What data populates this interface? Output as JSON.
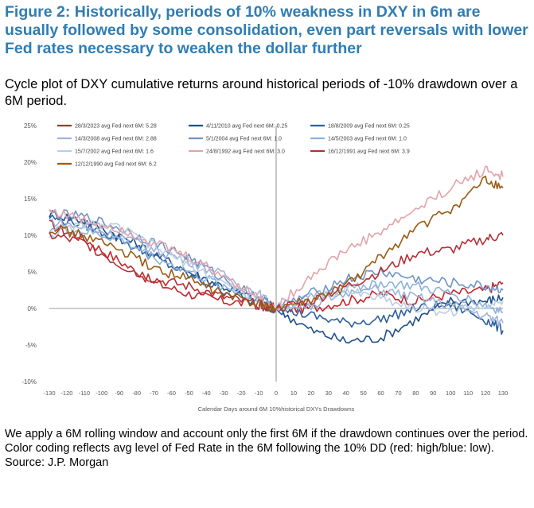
{
  "title": "Figure 2: Historically, periods of 10% weakness in DXY in 6m are usually followed by some consolidation, even part reversals with lower Fed rates necessary to weaken the dollar further",
  "subtitle": "Cycle plot of DXY cumulative returns around historical periods of -10% drawdown over a 6M period.",
  "footer": {
    "note1": "We apply a 6M rolling window and account only the first 6M if the drawdown continues over the period.",
    "note2": "Color coding reflects avg level of Fed Rate in the 6M following the 10% DD (red: high/blue: low).",
    "source": "Source: J.P. Morgan"
  },
  "chart_data": {
    "type": "line",
    "xlabel": "Calendar Days around 6M 10%historical DXYs Drawdowns",
    "ylabel": "",
    "xlim": [
      -130,
      130
    ],
    "ylim": [
      -10,
      25
    ],
    "x_ticks": [
      -130,
      -120,
      -110,
      -100,
      -90,
      -80,
      -70,
      -60,
      -50,
      -40,
      -30,
      -20,
      -10,
      0,
      10,
      20,
      30,
      40,
      50,
      60,
      70,
      80,
      90,
      100,
      110,
      120,
      130
    ],
    "y_ticks": [
      -10,
      -5,
      0,
      5,
      10,
      15,
      20,
      25
    ],
    "y_tick_labels": [
      "-10%",
      "-5%",
      "0%",
      "5%",
      "10%",
      "15%",
      "20%",
      "25%"
    ],
    "grid": false,
    "legend_position": "top",
    "series": [
      {
        "name": "28/3/2023 avg Fed next 6M: 5.28",
        "color": "#c0282d",
        "dash": "solid",
        "x": [
          -130,
          -110,
          -90,
          -70,
          -50,
          -30,
          -10,
          0,
          20,
          40,
          60,
          80,
          100,
          120,
          130
        ],
        "y": [
          11.5,
          9.5,
          6.5,
          3.5,
          2.0,
          1.0,
          0.5,
          0.0,
          0.0,
          1.0,
          2.0,
          1.0,
          2.0,
          2.5,
          3.5
        ]
      },
      {
        "name": "4/11/2010 avg Fed next 6M: 0.25",
        "color": "#1f4e8c",
        "dash": "solid",
        "x": [
          -130,
          -110,
          -90,
          -70,
          -50,
          -30,
          -10,
          0,
          20,
          40,
          60,
          80,
          100,
          120,
          130
        ],
        "y": [
          13.0,
          12.0,
          10.0,
          7.5,
          5.0,
          3.0,
          1.0,
          0.0,
          -3.0,
          -4.5,
          -4.0,
          -1.5,
          1.0,
          1.0,
          1.5
        ]
      },
      {
        "name": "18/8/2009 avg Fed next 6M: 0.25",
        "color": "#2c5f9e",
        "dash": "solid",
        "x": [
          -130,
          -110,
          -90,
          -70,
          -50,
          -30,
          -10,
          0,
          20,
          40,
          60,
          80,
          100,
          120,
          130
        ],
        "y": [
          12.5,
          11.5,
          9.5,
          7.0,
          4.5,
          2.5,
          0.5,
          0.0,
          -1.0,
          -2.0,
          -1.5,
          0.0,
          0.5,
          -1.5,
          -3.0
        ]
      },
      {
        "name": "14/3/2008 avg Fed next 6M: 2.88",
        "color": "#9fb4d8",
        "dash": "solid",
        "x": [
          -130,
          -110,
          -90,
          -70,
          -50,
          -30,
          -10,
          0,
          20,
          40,
          60,
          80,
          100,
          120,
          130
        ],
        "y": [
          12.0,
          11.0,
          10.0,
          8.0,
          6.5,
          4.5,
          2.0,
          0.0,
          1.5,
          3.0,
          2.5,
          1.5,
          0.5,
          -1.0,
          -2.0
        ]
      },
      {
        "name": "5/1/2004 avg Fed next 6M: 1.0",
        "color": "#6f93c7",
        "dash": "solid",
        "x": [
          -130,
          -110,
          -90,
          -70,
          -50,
          -30,
          -10,
          0,
          20,
          40,
          60,
          80,
          100,
          120,
          130
        ],
        "y": [
          13.0,
          12.5,
          11.0,
          9.0,
          7.0,
          4.0,
          1.5,
          0.0,
          2.0,
          4.0,
          5.0,
          4.0,
          3.5,
          3.0,
          2.5
        ]
      },
      {
        "name": "14/5/2003 avg Fed next 6M: 1.0",
        "color": "#8cb2dd",
        "dash": "solid",
        "x": [
          -130,
          -110,
          -90,
          -70,
          -50,
          -30,
          -10,
          0,
          20,
          40,
          60,
          80,
          100,
          120,
          130
        ],
        "y": [
          11.0,
          10.5,
          9.5,
          7.0,
          5.0,
          3.0,
          1.0,
          0.0,
          0.5,
          2.0,
          3.5,
          3.0,
          2.0,
          0.5,
          -0.5
        ]
      },
      {
        "name": "15/7/2002 avg Fed next 6M: 1.6",
        "color": "#b9cde6",
        "dash": "solid",
        "x": [
          -130,
          -110,
          -90,
          -70,
          -50,
          -30,
          -10,
          0,
          20,
          40,
          60,
          80,
          100,
          120,
          130
        ],
        "y": [
          10.0,
          11.5,
          11.0,
          8.5,
          6.0,
          3.5,
          1.0,
          0.0,
          1.0,
          2.5,
          1.5,
          0.0,
          -0.5,
          0.5,
          1.0
        ]
      },
      {
        "name": "24/8/1992 avg Fed next 6M: 3.0",
        "color": "#e3a3a8",
        "dash": "solid",
        "x": [
          -130,
          -110,
          -90,
          -70,
          -50,
          -30,
          -10,
          0,
          20,
          40,
          60,
          80,
          100,
          120,
          130
        ],
        "y": [
          13.5,
          12.0,
          11.0,
          9.0,
          7.0,
          4.5,
          1.5,
          0.0,
          4.5,
          8.0,
          10.5,
          13.5,
          16.5,
          19.0,
          18.0
        ]
      },
      {
        "name": "16/12/1991 avg Fed next 6M: 3.9",
        "color": "#b53038",
        "dash": "solid",
        "x": [
          -130,
          -110,
          -90,
          -70,
          -50,
          -30,
          -10,
          0,
          20,
          40,
          60,
          80,
          100,
          120,
          130
        ],
        "y": [
          10.0,
          9.0,
          6.0,
          4.0,
          3.0,
          1.5,
          0.5,
          0.0,
          1.0,
          3.0,
          5.0,
          7.5,
          8.0,
          9.5,
          10.0
        ]
      },
      {
        "name": "12/12/1990 avg Fed next 6M: 6.2",
        "color": "#9a5a12",
        "dash": "solid",
        "x": [
          -130,
          -110,
          -90,
          -70,
          -50,
          -30,
          -10,
          0,
          20,
          40,
          60,
          80,
          100,
          120,
          130
        ],
        "y": [
          11.0,
          10.0,
          8.0,
          5.5,
          4.0,
          2.0,
          0.5,
          0.0,
          1.0,
          3.0,
          7.0,
          11.0,
          13.5,
          17.5,
          16.5
        ]
      }
    ]
  }
}
